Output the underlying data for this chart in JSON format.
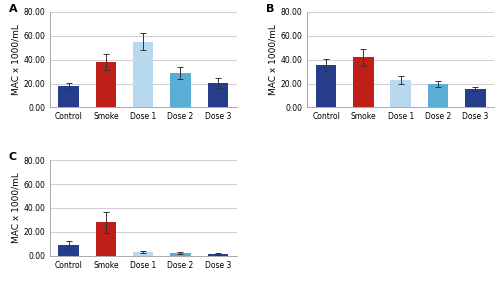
{
  "panels": [
    {
      "label": "A",
      "ylim": [
        0,
        80
      ],
      "yticks": [
        0,
        20,
        40,
        60,
        80
      ],
      "yticklabels": [
        "0.00",
        "20.00",
        "40.00",
        "60.00",
        "80.00"
      ],
      "ylabel": "MAC x 1000/mL",
      "categories": [
        "Control",
        "Smoke",
        "Dose 1",
        "Dose 2",
        "Dose 3"
      ],
      "values": [
        18,
        38,
        55,
        28.5,
        20.5
      ],
      "errors": [
        2.5,
        7,
        7,
        5,
        4
      ],
      "colors": [
        "#253d8a",
        "#be2018",
        "#b8d8ee",
        "#5aadd4",
        "#253d8a"
      ]
    },
    {
      "label": "B",
      "ylim": [
        0,
        80
      ],
      "yticks": [
        0,
        20,
        40,
        60,
        80
      ],
      "yticklabels": [
        "0.00",
        "20.00",
        "40.00",
        "60.00",
        "80.00"
      ],
      "ylabel": "MAC x 1000/mL",
      "categories": [
        "Control",
        "Smoke",
        "Dose 1",
        "Dose 2",
        "Dose 3"
      ],
      "values": [
        35.5,
        42,
        23,
        20,
        15.5
      ],
      "errors": [
        5,
        7,
        3.5,
        2.5,
        2
      ],
      "colors": [
        "#253d8a",
        "#be2018",
        "#b8d8ee",
        "#5aadd4",
        "#253d8a"
      ]
    },
    {
      "label": "C",
      "ylim": [
        0,
        80
      ],
      "yticks": [
        0,
        20,
        40,
        60,
        80
      ],
      "yticklabels": [
        "0.00",
        "20.00",
        "40.00",
        "60.00",
        "80.00"
      ],
      "ylabel": "MAC x 1000/mL",
      "categories": [
        "Control",
        "Smoke",
        "Dose 1",
        "Dose 2",
        "Dose 3"
      ],
      "values": [
        9,
        28,
        3,
        2,
        1.5
      ],
      "errors": [
        3,
        9,
        1,
        0.8,
        0.5
      ],
      "colors": [
        "#253d8a",
        "#be2018",
        "#b8d8ee",
        "#5aadd4",
        "#253d8a"
      ]
    }
  ],
  "background_color": "#ffffff",
  "grid_color": "#c8c8c8",
  "tick_fontsize": 5.5,
  "label_fontsize": 6.5,
  "panel_label_fontsize": 8,
  "bar_width": 0.55
}
